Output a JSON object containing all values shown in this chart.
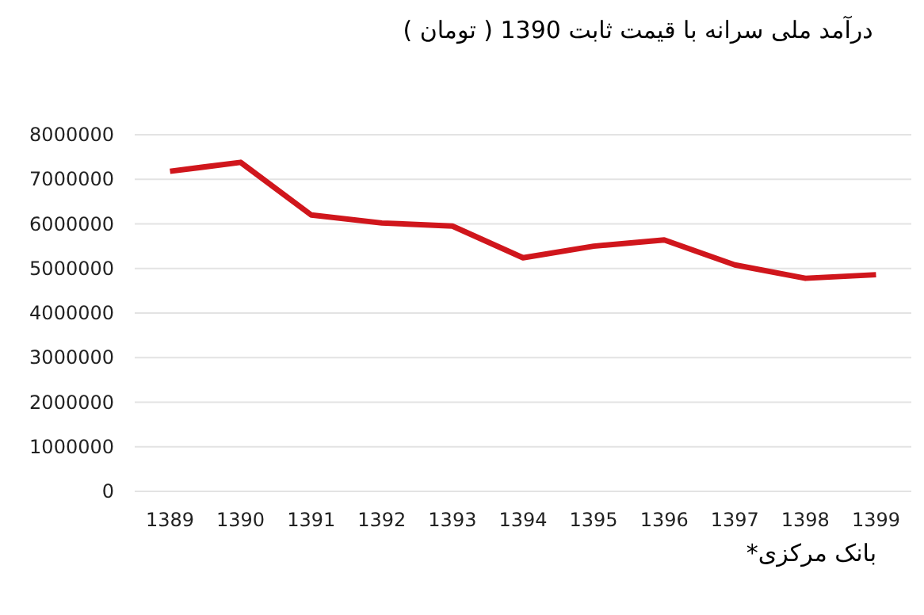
{
  "chart_data": {
    "type": "line",
    "title": "درآمد ملی سرانه با قیمت ثابت 1390 ( تومان )",
    "categories": [
      "1389",
      "1390",
      "1391",
      "1392",
      "1393",
      "1394",
      "1395",
      "1396",
      "1397",
      "1398",
      "1399"
    ],
    "values": [
      7180000,
      7380000,
      6200000,
      6020000,
      5950000,
      5240000,
      5500000,
      5640000,
      5080000,
      4780000,
      4860000
    ],
    "color": "#d0161c",
    "ylim": [
      0,
      8000000
    ],
    "yticks": [
      0,
      1000000,
      2000000,
      3000000,
      4000000,
      5000000,
      6000000,
      7000000,
      8000000
    ],
    "grid": "y",
    "annotations": [
      "بانک مرکزی*"
    ]
  }
}
